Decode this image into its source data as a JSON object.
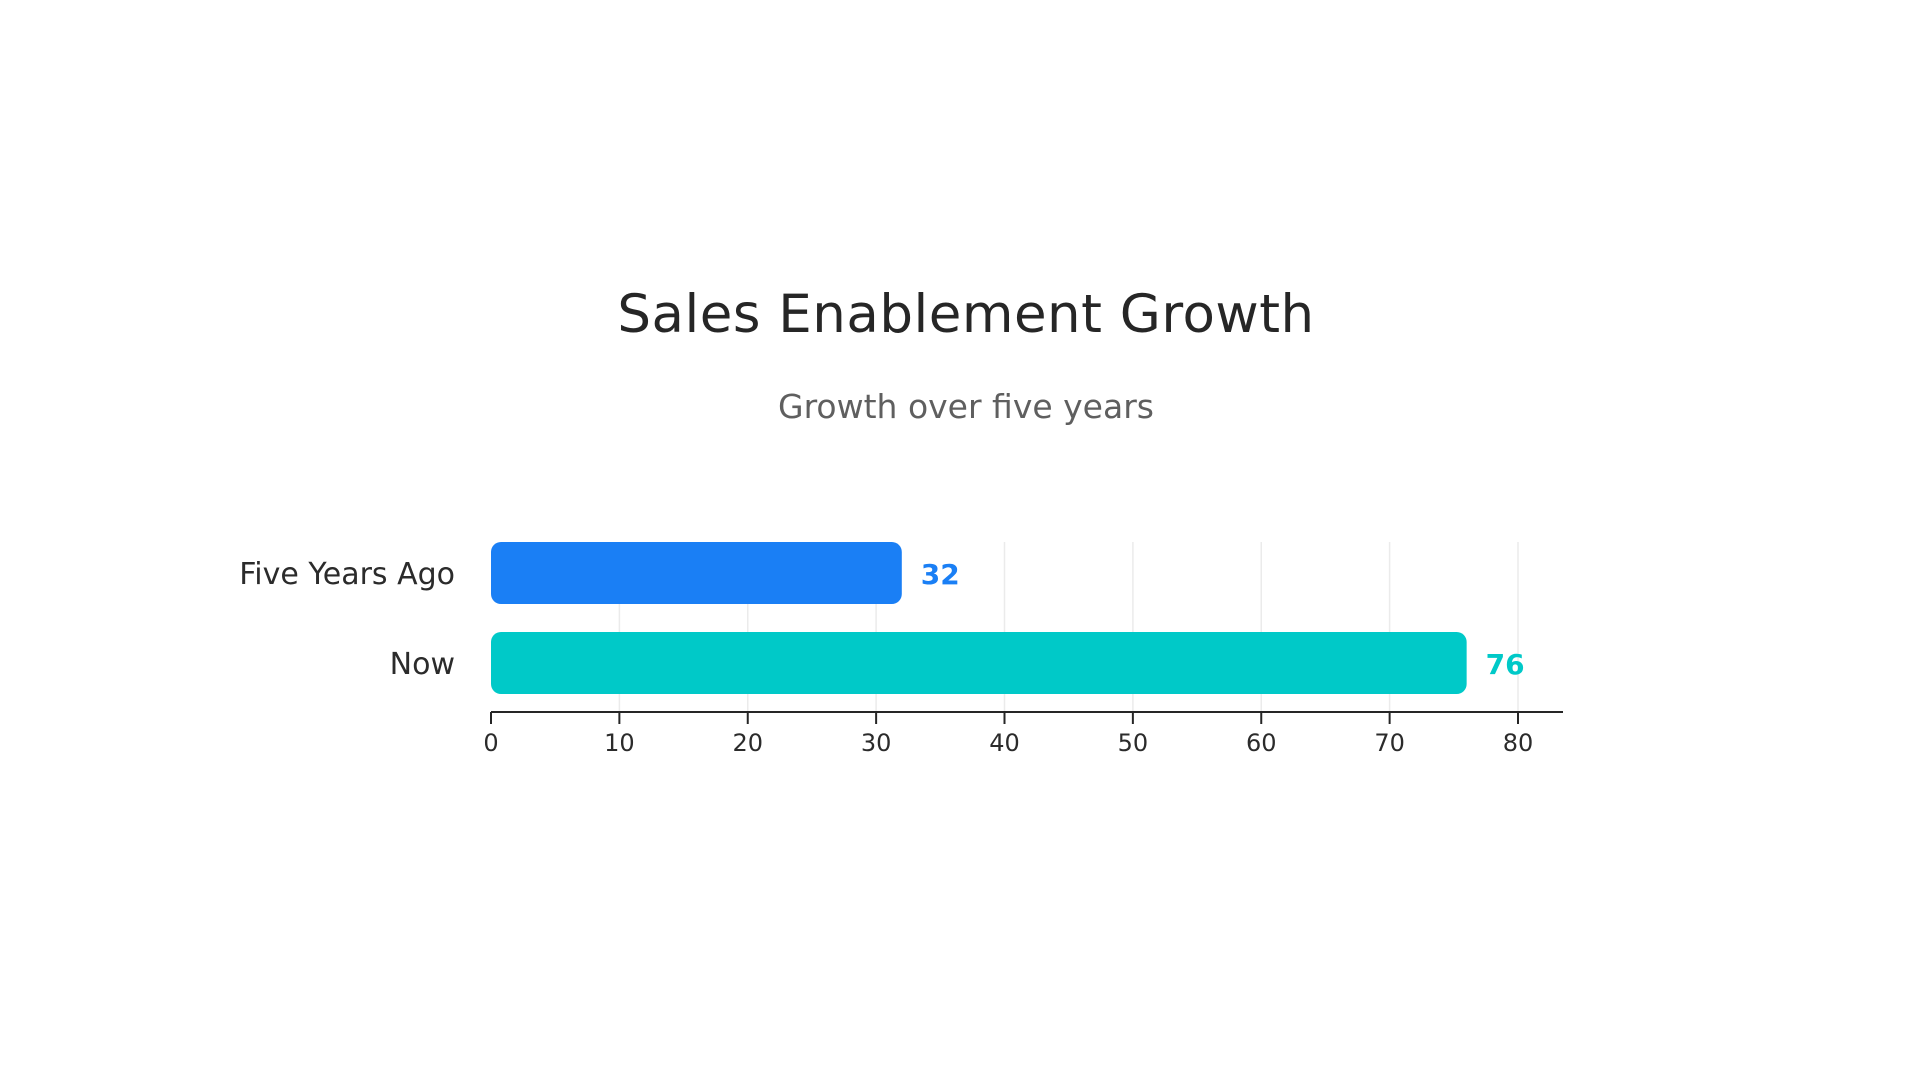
{
  "chart_data": {
    "type": "bar",
    "orientation": "horizontal",
    "title": "Sales Enablement Growth",
    "subtitle": "Growth over five years",
    "xlabel": "",
    "ylabel": "",
    "categories": [
      "Five Years Ago",
      "Now"
    ],
    "values": [
      32,
      76
    ],
    "value_labels": [
      "32",
      "76"
    ],
    "colors": [
      "#1a7ff5",
      "#00c9c8"
    ],
    "xlim": [
      0,
      80
    ],
    "xticks": [
      0,
      10,
      20,
      30,
      40,
      50,
      60,
      70,
      80
    ],
    "xtick_labels": [
      "0",
      "10",
      "20",
      "30",
      "40",
      "50",
      "60",
      "70",
      "80"
    ],
    "grid": true,
    "legend": "none"
  }
}
